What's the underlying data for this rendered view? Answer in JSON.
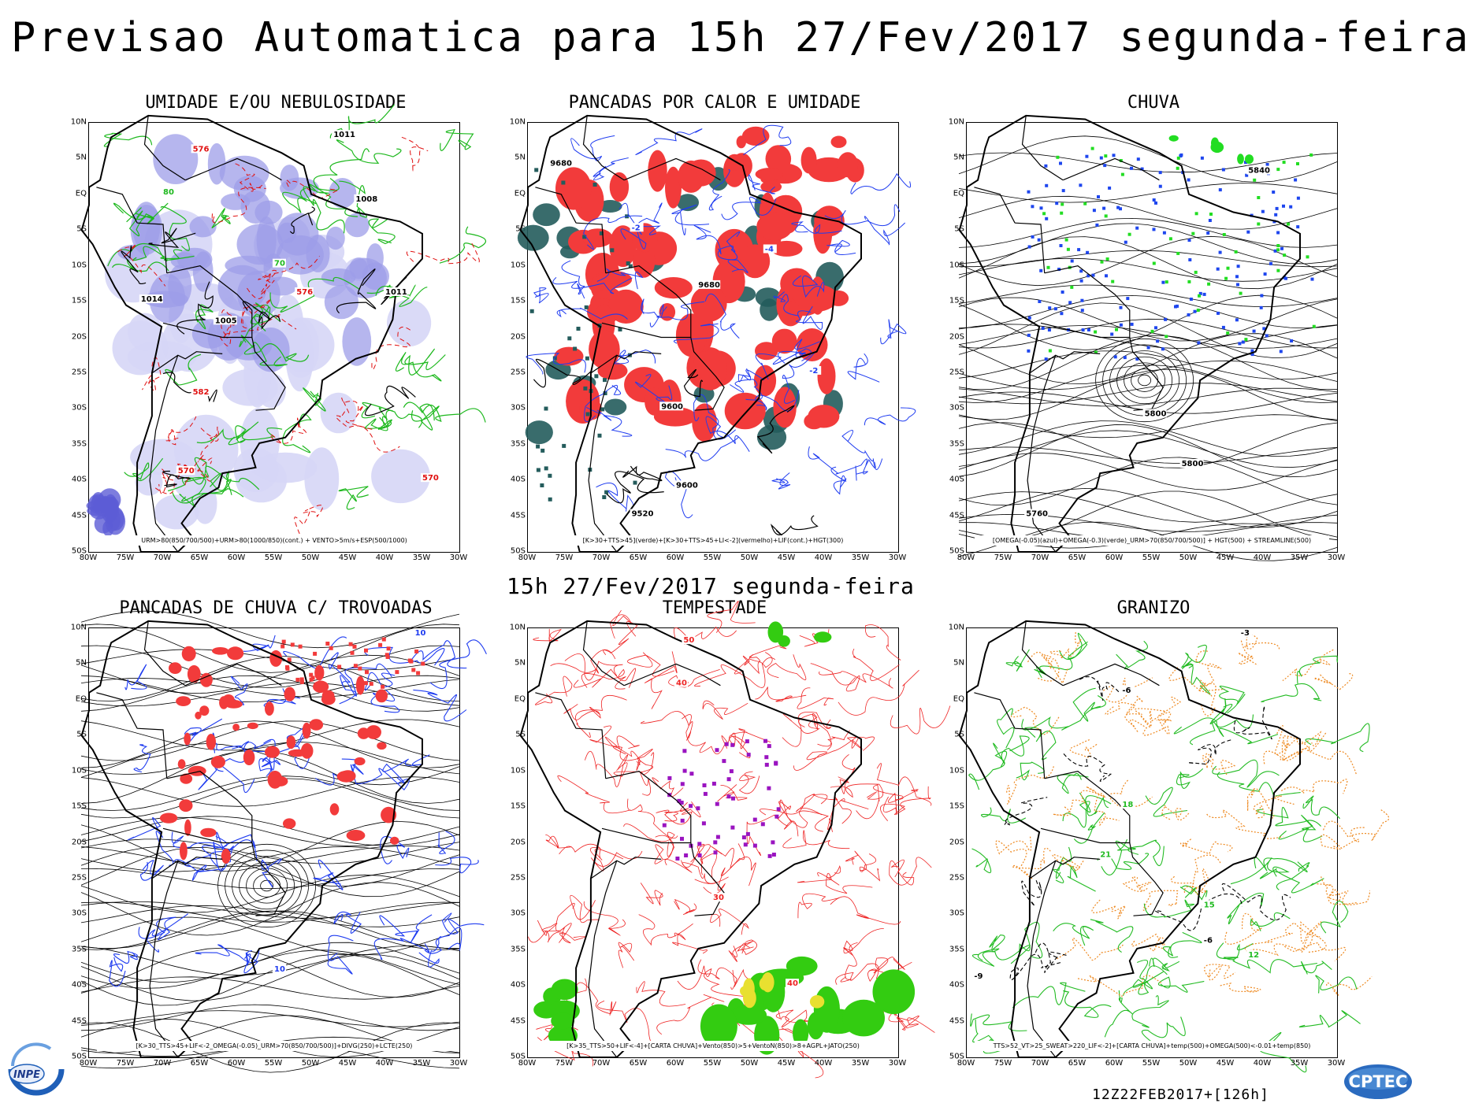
{
  "header": {
    "title": "Previsao Automatica  para 15h 27/Fev/2017 segunda-feira"
  },
  "mid_title": "15h 27/Fev/2017 segunda-feira",
  "run_label": "12Z22FEB2017+[126h]",
  "logos": {
    "left": "INPE",
    "right": "CPTEC"
  },
  "axes": {
    "lat_ticks": [
      "10N",
      "5N",
      "EQ",
      "5S",
      "10S",
      "15S",
      "20S",
      "25S",
      "30S",
      "35S",
      "40S",
      "45S",
      "50S"
    ],
    "lon_ticks": [
      "80W",
      "75W",
      "70W",
      "65W",
      "60W",
      "55W",
      "50W",
      "45W",
      "40W",
      "35W",
      "30W"
    ]
  },
  "panels": [
    {
      "id": "umidade",
      "title": "UMIDADE E/OU NEBULOSIDADE",
      "caption": "URM>80(850/700/500)+URM>80(1000/850)(cont.) + VENTO>5m/s+ESP(500/1000)",
      "colors": {
        "fill": "#9d9de8",
        "light": "#d6d6f6",
        "contour_green": "#1db81d",
        "contour_red": "#e01010",
        "contour_black": "#000000"
      },
      "labels": [
        "576",
        "1011",
        "1008",
        "1005",
        "1014",
        "582",
        "570",
        "80",
        "70"
      ]
    },
    {
      "id": "pancadas-calor",
      "title": "PANCADAS POR CALOR E UMIDADE",
      "caption": "[K>30+TTS>45](verde)+[K>30+TTS>45+LI<-2](vermelho)+LIF(cont.)+HGT(300)",
      "colors": {
        "red": "#f23b3b",
        "dark": "#245c5c",
        "blue": "#1f3cf0"
      },
      "labels": [
        "9680",
        "9600",
        "9520",
        "-2",
        "-4"
      ]
    },
    {
      "id": "chuva",
      "title": "CHUVA",
      "caption": "[OMEGA(-0.05)(azul)+OMEGA(-0.3)(verde)_URM>70(850/700/500)] + HGT(500) + STREAMLINE(500)",
      "colors": {
        "blue": "#1e46ee",
        "green": "#22dd22",
        "stream": "#000000"
      },
      "labels": [
        "5840",
        "5800",
        "5760"
      ]
    },
    {
      "id": "pancadas-trovoadas",
      "title": "PANCADAS DE CHUVA C/ TROVOADAS",
      "caption": "[K>30_TTS>45+LIF<-2_OMEGA(-0.05)_URM>70(850/700/500)]+DIVG(250)+LCTE(250)",
      "colors": {
        "red": "#f23b3b",
        "blue": "#1f3cf0",
        "stream": "#000000"
      },
      "labels": [
        "10"
      ]
    },
    {
      "id": "tempestade",
      "title": "TEMPESTADE",
      "caption": "[K>35_TTS>50+LIF<-4]+[CARTA CHUVA]+Vento(850)>5+VentoN(850)>8+AGPL+JATO(250)",
      "colors": {
        "red": "#ee2222",
        "purple": "#9a14c0",
        "green": "#33cc11",
        "yellow": "#e8e030"
      },
      "labels": [
        "50",
        "40",
        "30"
      ]
    },
    {
      "id": "granizo",
      "title": "GRANIZO",
      "caption": "TTS>52_VT>25_SWEAT>220_LIF<-2]+[CARTA CHUVA]+temp(500)+OMEGA(500)<-0.01+temp(850)",
      "colors": {
        "green": "#22bb22",
        "orange": "#ee8a22",
        "black": "#000000"
      },
      "labels": [
        "-6",
        "-9",
        "-3",
        "12",
        "15",
        "18",
        "21"
      ]
    }
  ]
}
